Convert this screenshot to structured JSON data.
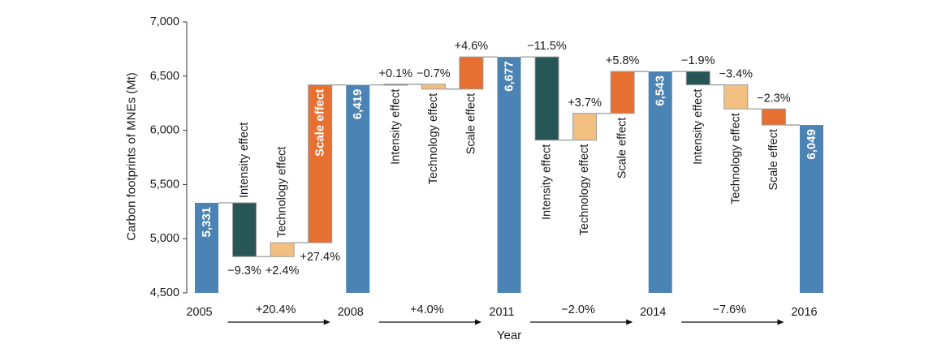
{
  "chart_data": {
    "type": "bar",
    "xlabel": "Year",
    "ylabel": "Carbon footprints of MNEs (Mt)",
    "ylim": [
      4500,
      7000
    ],
    "yticks": [
      4500,
      5000,
      5500,
      6000,
      6500,
      7000
    ],
    "ytick_labels": [
      "4,500",
      "5,000",
      "5,500",
      "6,000",
      "6,500",
      "7,000"
    ],
    "grid": false,
    "bars": [
      {
        "category": "2005",
        "value": 5331,
        "label": "5,331",
        "color": "#4b84b4"
      },
      {
        "name": "Intensity effect",
        "from": 5331,
        "to": 4835,
        "change": "−9.3%",
        "color": "#275656"
      },
      {
        "name": "Technology effect",
        "from": 4835,
        "to": 4963,
        "change": "+2.4%",
        "color": "#f1c080"
      },
      {
        "name": "Scale effect",
        "from": 4963,
        "to": 6419,
        "change": "+27.4%",
        "color": "#e67032"
      },
      {
        "category": "2008",
        "value": 6419,
        "label": "6,419",
        "color": "#4b84b4"
      },
      {
        "name": "Intensity effect",
        "from": 6419,
        "to": 6425,
        "change": "+0.1%",
        "color": "#275656"
      },
      {
        "name": "Technology effect",
        "from": 6425,
        "to": 6380,
        "change": "−0.7%",
        "color": "#f1c080"
      },
      {
        "name": "Scale effect",
        "from": 6380,
        "to": 6677,
        "change": "+4.6%",
        "color": "#e67032"
      },
      {
        "category": "2011",
        "value": 6677,
        "label": "6,677",
        "color": "#4b84b4"
      },
      {
        "name": "Intensity effect",
        "from": 6677,
        "to": 5909,
        "change": "−11.5%",
        "color": "#275656"
      },
      {
        "name": "Technology effect",
        "from": 5909,
        "to": 6156,
        "change": "+3.7%",
        "color": "#f1c080"
      },
      {
        "name": "Scale effect",
        "from": 6156,
        "to": 6543,
        "change": "+5.8%",
        "color": "#e67032"
      },
      {
        "category": "2014",
        "value": 6543,
        "label": "6,543",
        "color": "#4b84b4"
      },
      {
        "name": "Intensity effect",
        "from": 6543,
        "to": 6419,
        "change": "−1.9%",
        "color": "#275656"
      },
      {
        "name": "Technology effect",
        "from": 6419,
        "to": 6197,
        "change": "−3.4%",
        "color": "#f1c080"
      },
      {
        "name": "Scale effect",
        "from": 6197,
        "to": 6049,
        "change": "−2.3%",
        "color": "#e67032"
      },
      {
        "category": "2016",
        "value": 6049,
        "label": "6,049",
        "color": "#4b84b4"
      }
    ],
    "periods": [
      {
        "change": "+20.4%"
      },
      {
        "change": "+4.0%"
      },
      {
        "change": "−2.0%"
      },
      {
        "change": "−7.6%"
      }
    ]
  }
}
